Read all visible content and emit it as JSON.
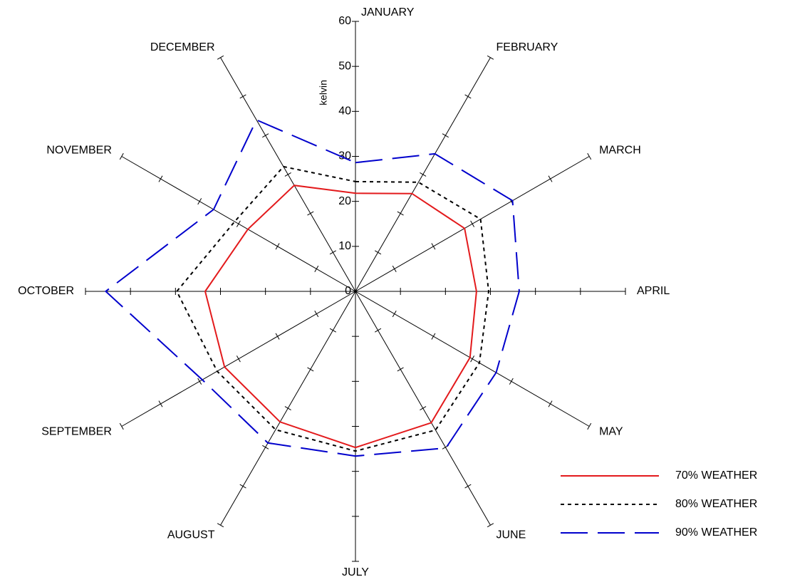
{
  "chart_data": {
    "type": "radar",
    "r_label": "kelvin",
    "categories": [
      "JANUARY",
      "FEBRUARY",
      "MARCH",
      "APRIL",
      "MAY",
      "JUNE",
      "JULY",
      "AUGUST",
      "SEPTEMBER",
      "OCTOBER",
      "NOVEMBER",
      "DECEMBER"
    ],
    "rlim": [
      0,
      60
    ],
    "rticks": [
      0,
      10,
      20,
      30,
      40,
      50,
      60
    ],
    "series": [
      {
        "name": "70% WEATHER",
        "color": "#e31a1c",
        "dash": "solid",
        "values": [
          21.8,
          25.1,
          28,
          26.9,
          29.4,
          33.7,
          34.7,
          33.5,
          33.6,
          33.4,
          27.6,
          27.2
        ]
      },
      {
        "name": "80% WEATHER",
        "color": "#000000",
        "dash": "dotted",
        "values": [
          24.4,
          28,
          32.1,
          29.6,
          31.8,
          35.6,
          35.5,
          35.5,
          35.5,
          39.7,
          31,
          32
        ]
      },
      {
        "name": "90% WEATHER",
        "color": "#0000cc",
        "dash": "long-dash",
        "values": [
          28.6,
          35.3,
          40.3,
          36.4,
          36.1,
          40.2,
          36.6,
          38.9,
          39.3,
          55.5,
          36.4,
          44
        ]
      }
    ],
    "legend": "bottom-right"
  }
}
